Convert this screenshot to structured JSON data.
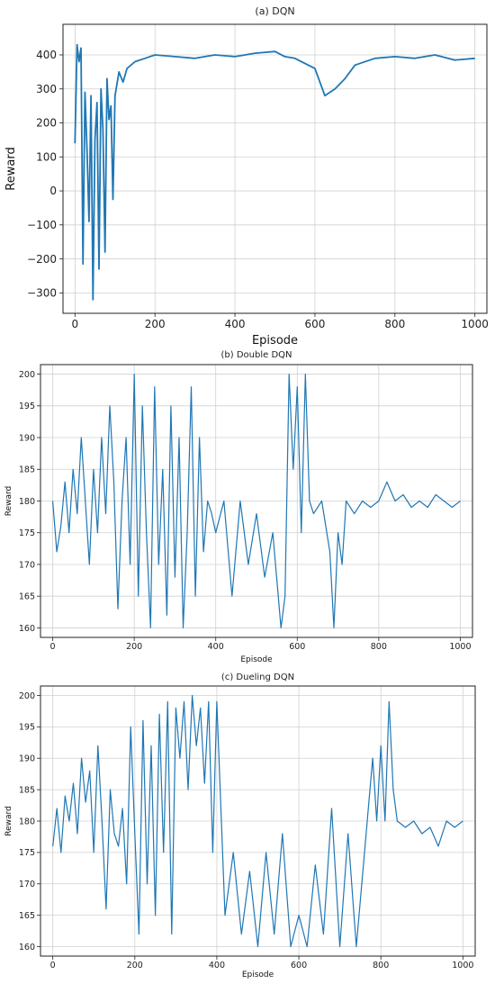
{
  "chart_data": [
    {
      "panel": "a",
      "type": "line",
      "title": "(a)  DQN",
      "xlabel": "Episode",
      "ylabel": "Reward",
      "xlim": [
        -30,
        1030
      ],
      "ylim": [
        -360,
        490
      ],
      "xticks": [
        0,
        200,
        400,
        600,
        800,
        1000
      ],
      "yticks": [
        -300,
        -200,
        -100,
        0,
        100,
        200,
        300,
        400
      ],
      "xtick_labels": [
        "0",
        "200",
        "400",
        "600",
        "800",
        "1000"
      ],
      "ytick_labels": [
        "−300",
        "−200",
        "−100",
        "0",
        "100",
        "200",
        "300",
        "400"
      ],
      "grid": true,
      "color": "#1f77b4",
      "series": [
        {
          "x": [
            0,
            5,
            10,
            15,
            20,
            25,
            30,
            35,
            40,
            45,
            50,
            55,
            60,
            65,
            70,
            75,
            80,
            85,
            90,
            95,
            100,
            110,
            120,
            130,
            150,
            175,
            200,
            250,
            300,
            350,
            400,
            450,
            500,
            525,
            550,
            600,
            625,
            650,
            675,
            700,
            750,
            800,
            850,
            900,
            950,
            1000
          ],
          "y": [
            140,
            430,
            380,
            420,
            -215,
            290,
            120,
            -90,
            280,
            -320,
            150,
            260,
            -230,
            300,
            180,
            -180,
            330,
            210,
            250,
            -25,
            280,
            350,
            320,
            360,
            380,
            390,
            400,
            395,
            390,
            400,
            395,
            405,
            410,
            395,
            390,
            360,
            280,
            300,
            330,
            370,
            390,
            395,
            390,
            400,
            385,
            390
          ]
        }
      ]
    },
    {
      "panel": "b",
      "type": "line",
      "title": "(b)  Double DQN",
      "xlabel": "Episode",
      "ylabel": "Reward",
      "xlim": [
        -30,
        1030
      ],
      "ylim": [
        158.5,
        201.5
      ],
      "xticks": [
        0,
        200,
        400,
        600,
        800,
        1000
      ],
      "yticks": [
        160,
        165,
        170,
        175,
        180,
        185,
        190,
        195,
        200
      ],
      "xtick_labels": [
        "0",
        "200",
        "400",
        "600",
        "800",
        "1000"
      ],
      "ytick_labels": [
        "160",
        "165",
        "170",
        "175",
        "180",
        "185",
        "190",
        "195",
        "200"
      ],
      "grid": true,
      "color": "#1f77b4",
      "series": [
        {
          "x": [
            0,
            10,
            20,
            30,
            40,
            50,
            60,
            70,
            80,
            90,
            100,
            110,
            120,
            130,
            140,
            150,
            160,
            170,
            180,
            190,
            200,
            210,
            220,
            230,
            240,
            250,
            260,
            270,
            280,
            290,
            300,
            310,
            320,
            330,
            340,
            350,
            360,
            370,
            380,
            390,
            400,
            420,
            440,
            460,
            480,
            500,
            520,
            540,
            560,
            570,
            580,
            590,
            600,
            610,
            620,
            630,
            640,
            660,
            680,
            690,
            700,
            710,
            720,
            740,
            760,
            780,
            800,
            820,
            840,
            860,
            880,
            900,
            920,
            940,
            960,
            980,
            1000
          ],
          "y": [
            180,
            172,
            176,
            183,
            175,
            185,
            178,
            190,
            180,
            170,
            185,
            175,
            190,
            178,
            195,
            183,
            163,
            180,
            190,
            170,
            200,
            165,
            195,
            175,
            160,
            198,
            170,
            185,
            162,
            195,
            168,
            190,
            160,
            175,
            198,
            165,
            190,
            172,
            180,
            178,
            175,
            180,
            165,
            180,
            170,
            178,
            168,
            175,
            160,
            165,
            200,
            185,
            198,
            175,
            200,
            180,
            178,
            180,
            172,
            160,
            175,
            170,
            180,
            178,
            180,
            179,
            180,
            183,
            180,
            181,
            179,
            180,
            179,
            181,
            180,
            179,
            180
          ]
        }
      ]
    },
    {
      "panel": "c",
      "type": "line",
      "title": "(c)  Dueling DQN",
      "xlabel": "Episode",
      "ylabel": "Reward",
      "xlim": [
        -30,
        1030
      ],
      "ylim": [
        158.5,
        201.5
      ],
      "xticks": [
        0,
        200,
        400,
        600,
        800,
        1000
      ],
      "yticks": [
        160,
        165,
        170,
        175,
        180,
        185,
        190,
        195,
        200
      ],
      "xtick_labels": [
        "0",
        "200",
        "400",
        "600",
        "800",
        "1000"
      ],
      "ytick_labels": [
        "160",
        "165",
        "170",
        "175",
        "180",
        "185",
        "190",
        "195",
        "200"
      ],
      "grid": true,
      "color": "#1f77b4",
      "series": [
        {
          "x": [
            0,
            10,
            20,
            30,
            40,
            50,
            60,
            70,
            80,
            90,
            100,
            110,
            120,
            130,
            140,
            150,
            160,
            170,
            180,
            190,
            200,
            210,
            220,
            230,
            240,
            250,
            260,
            270,
            280,
            290,
            300,
            310,
            320,
            330,
            340,
            350,
            360,
            370,
            380,
            390,
            400,
            420,
            440,
            460,
            480,
            500,
            520,
            540,
            560,
            580,
            600,
            620,
            640,
            660,
            680,
            700,
            720,
            740,
            760,
            780,
            790,
            800,
            810,
            820,
            830,
            840,
            860,
            880,
            900,
            920,
            940,
            960,
            980,
            1000
          ],
          "y": [
            176,
            182,
            175,
            184,
            180,
            186,
            178,
            190,
            183,
            188,
            175,
            192,
            180,
            166,
            185,
            178,
            176,
            182,
            170,
            195,
            178,
            162,
            196,
            170,
            192,
            165,
            197,
            175,
            199,
            162,
            198,
            190,
            199,
            185,
            200,
            192,
            198,
            186,
            199,
            175,
            199,
            165,
            175,
            162,
            172,
            160,
            175,
            162,
            178,
            160,
            165,
            160,
            173,
            162,
            182,
            160,
            178,
            160,
            175,
            190,
            180,
            192,
            180,
            199,
            185,
            180,
            179,
            180,
            178,
            179,
            176,
            180,
            179,
            180
          ]
        }
      ]
    }
  ]
}
